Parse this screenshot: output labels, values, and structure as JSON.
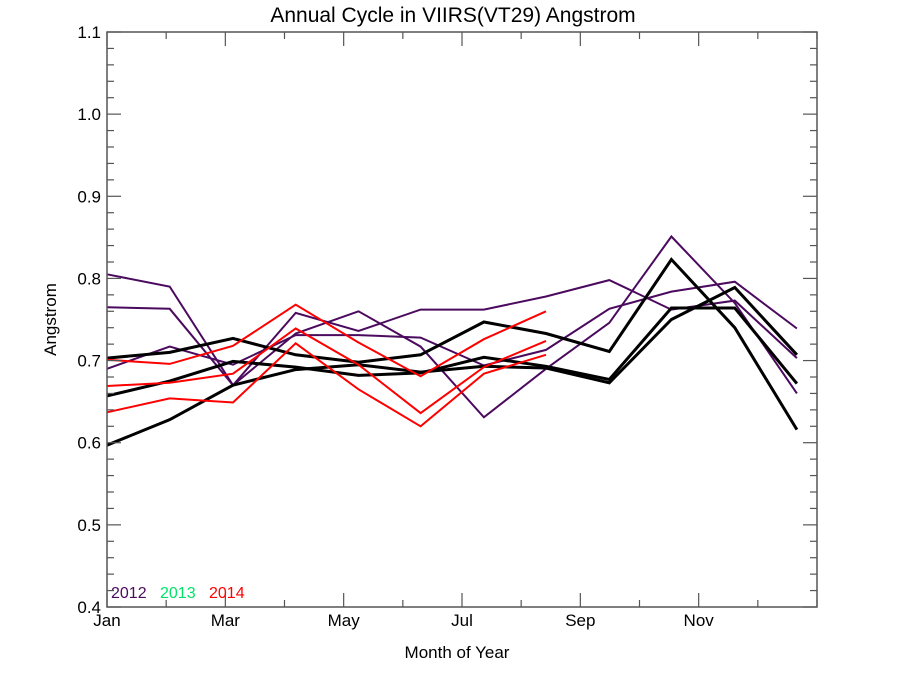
{
  "chart_data": {
    "type": "line",
    "title": "Annual Cycle in VIIRS(VT29) Angstrom",
    "xlabel": "Month of Year",
    "ylabel": "Angstrom",
    "xlim": [
      1,
      13
    ],
    "ylim": [
      0.4,
      1.1
    ],
    "grid": false,
    "x_ticks": [
      {
        "value": 1,
        "label": "Jan"
      },
      {
        "value": 3,
        "label": "Mar"
      },
      {
        "value": 5,
        "label": "May"
      },
      {
        "value": 7,
        "label": "Jul"
      },
      {
        "value": 9,
        "label": "Sep"
      },
      {
        "value": 11,
        "label": "Nov"
      }
    ],
    "y_ticks": [
      {
        "value": 0.4,
        "label": "0.4"
      },
      {
        "value": 0.5,
        "label": "0.5"
      },
      {
        "value": 0.6,
        "label": "0.6"
      },
      {
        "value": 0.7,
        "label": "0.7"
      },
      {
        "value": 0.8,
        "label": "0.8"
      },
      {
        "value": 0.9,
        "label": "0.9"
      },
      {
        "value": 1.0,
        "label": "1.0"
      },
      {
        "value": 1.1,
        "label": "1.1"
      }
    ],
    "x": [
      1.0,
      2.06,
      3.13,
      4.19,
      5.25,
      6.3,
      7.37,
      8.42,
      9.49,
      10.54,
      11.61,
      12.66
    ],
    "legend": {
      "placement": "bottom-left",
      "entries": [
        {
          "label": "2012",
          "color": "#4b0a5e"
        },
        {
          "label": "2013",
          "color": "#00e36a"
        },
        {
          "label": "2014",
          "color": "#ff0000"
        }
      ]
    },
    "series": [
      {
        "name": "2012 a",
        "group": "2012",
        "color": "#4b0a5e",
        "width": "thin",
        "values": [
          0.805,
          0.79,
          0.67,
          0.758,
          0.736,
          0.762,
          0.762,
          0.778,
          0.798,
          0.762,
          0.773,
          0.703
        ]
      },
      {
        "name": "2012 b",
        "group": "2012",
        "color": "#4b0a5e",
        "width": "thin",
        "values": [
          0.765,
          0.763,
          0.67,
          0.733,
          0.76,
          0.717,
          0.631,
          0.69,
          0.746,
          0.851,
          0.77,
          0.66
        ]
      },
      {
        "name": "2012 c",
        "group": "2012",
        "color": "#4b0a5e",
        "width": "thin",
        "values": [
          0.69,
          0.717,
          0.695,
          0.731,
          0.731,
          0.728,
          0.694,
          0.713,
          0.763,
          0.784,
          0.796,
          0.739
        ]
      },
      {
        "name": "black a",
        "group": "2013",
        "color": "#000000",
        "width": "thick",
        "values": [
          0.703,
          0.71,
          0.727,
          0.707,
          0.698,
          0.707,
          0.747,
          0.733,
          0.711,
          0.823,
          0.74,
          0.616
        ]
      },
      {
        "name": "black b",
        "group": "2013",
        "color": "#000000",
        "width": "thick",
        "values": [
          0.657,
          0.675,
          0.699,
          0.692,
          0.682,
          0.685,
          0.704,
          0.693,
          0.677,
          0.764,
          0.764,
          0.672
        ]
      },
      {
        "name": "black c",
        "group": "2013",
        "color": "#000000",
        "width": "thick",
        "values": [
          0.597,
          0.628,
          0.67,
          0.689,
          0.695,
          0.686,
          0.693,
          0.691,
          0.673,
          0.75,
          0.789,
          0.707
        ]
      },
      {
        "name": "2014 a",
        "group": "2014",
        "color": "#ff0000",
        "width": "thin",
        "values": [
          0.701,
          0.696,
          0.718,
          0.768,
          0.722,
          0.681,
          0.726,
          0.76
        ]
      },
      {
        "name": "2014 b",
        "group": "2014",
        "color": "#ff0000",
        "width": "thin",
        "values": [
          0.669,
          0.673,
          0.684,
          0.739,
          0.695,
          0.636,
          0.692,
          0.724
        ]
      },
      {
        "name": "2014 c",
        "group": "2014",
        "color": "#ff0000",
        "width": "thin",
        "values": [
          0.637,
          0.654,
          0.649,
          0.721,
          0.665,
          0.62,
          0.684,
          0.707
        ]
      }
    ]
  }
}
